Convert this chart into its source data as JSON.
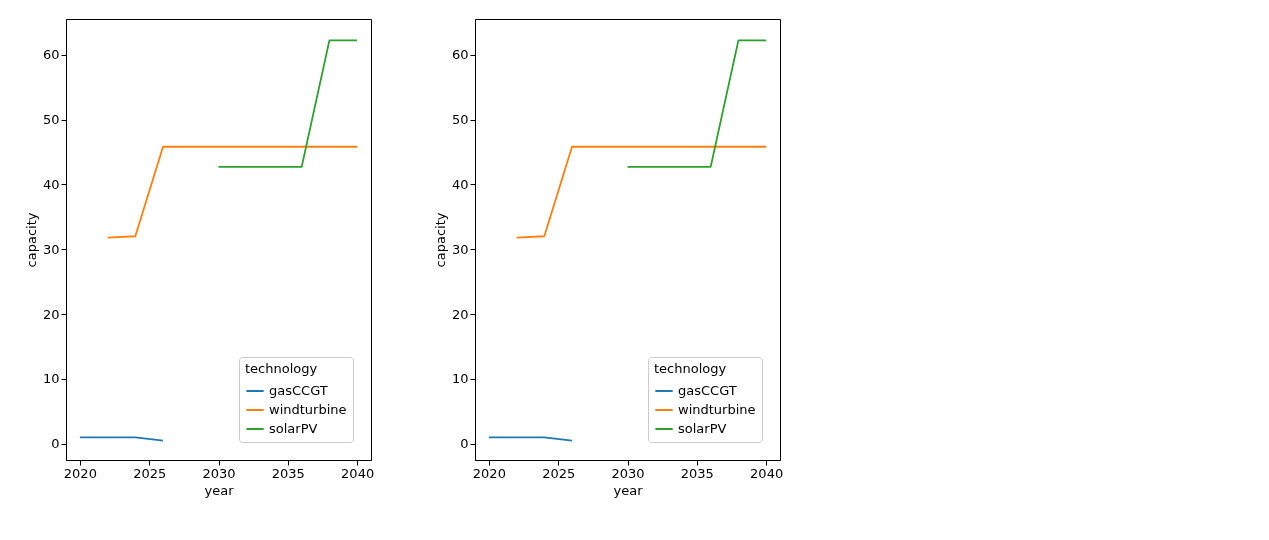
{
  "chart_data": [
    {
      "type": "line",
      "xlabel": "year",
      "ylabel": "capacity",
      "legend_title": "technology",
      "legend": "bottom right",
      "grid": false,
      "marker": "none",
      "line_style": "solid",
      "x": [
        2020,
        2022,
        2024,
        2026,
        2028,
        2030,
        2032,
        2034,
        2036,
        2038,
        2040
      ],
      "xlim": [
        2019,
        2041
      ],
      "xticks": [
        2020,
        2025,
        2030,
        2035,
        2040
      ],
      "ylim": [
        -2.5,
        65.5
      ],
      "yticks": [
        0,
        10,
        20,
        30,
        40,
        50,
        60
      ],
      "series": [
        {
          "name": "gasCCGT",
          "color": "#1f77b4",
          "values": [
            1.0,
            1.0,
            1.0,
            0.5,
            null,
            null,
            null,
            null,
            null,
            null,
            null
          ]
        },
        {
          "name": "windturbine",
          "color": "#ff7f0e",
          "values": [
            null,
            31.8,
            32.0,
            45.8,
            45.8,
            45.8,
            45.8,
            45.8,
            45.8,
            45.8,
            45.8
          ]
        },
        {
          "name": "solarPV",
          "color": "#2ca02c",
          "values": [
            null,
            null,
            null,
            null,
            null,
            42.7,
            42.7,
            42.7,
            42.7,
            62.2,
            62.2
          ]
        }
      ]
    },
    {
      "type": "line",
      "xlabel": "year",
      "ylabel": "capacity",
      "legend_title": "technology",
      "legend": "bottom right",
      "grid": false,
      "marker": "none",
      "line_style": "solid",
      "x": [
        2020,
        2022,
        2024,
        2026,
        2028,
        2030,
        2032,
        2034,
        2036,
        2038,
        2040
      ],
      "xlim": [
        2019,
        2041
      ],
      "xticks": [
        2020,
        2025,
        2030,
        2035,
        2040
      ],
      "ylim": [
        -2.5,
        65.5
      ],
      "yticks": [
        0,
        10,
        20,
        30,
        40,
        50,
        60
      ],
      "series": [
        {
          "name": "gasCCGT",
          "color": "#1f77b4",
          "values": [
            1.0,
            1.0,
            1.0,
            0.5,
            null,
            null,
            null,
            null,
            null,
            null,
            null
          ]
        },
        {
          "name": "windturbine",
          "color": "#ff7f0e",
          "values": [
            null,
            31.8,
            32.0,
            45.8,
            45.8,
            45.8,
            45.8,
            45.8,
            45.8,
            45.8,
            45.8
          ]
        },
        {
          "name": "solarPV",
          "color": "#2ca02c",
          "values": [
            null,
            null,
            null,
            null,
            null,
            42.7,
            42.7,
            42.7,
            42.7,
            62.2,
            62.2
          ]
        }
      ]
    }
  ]
}
